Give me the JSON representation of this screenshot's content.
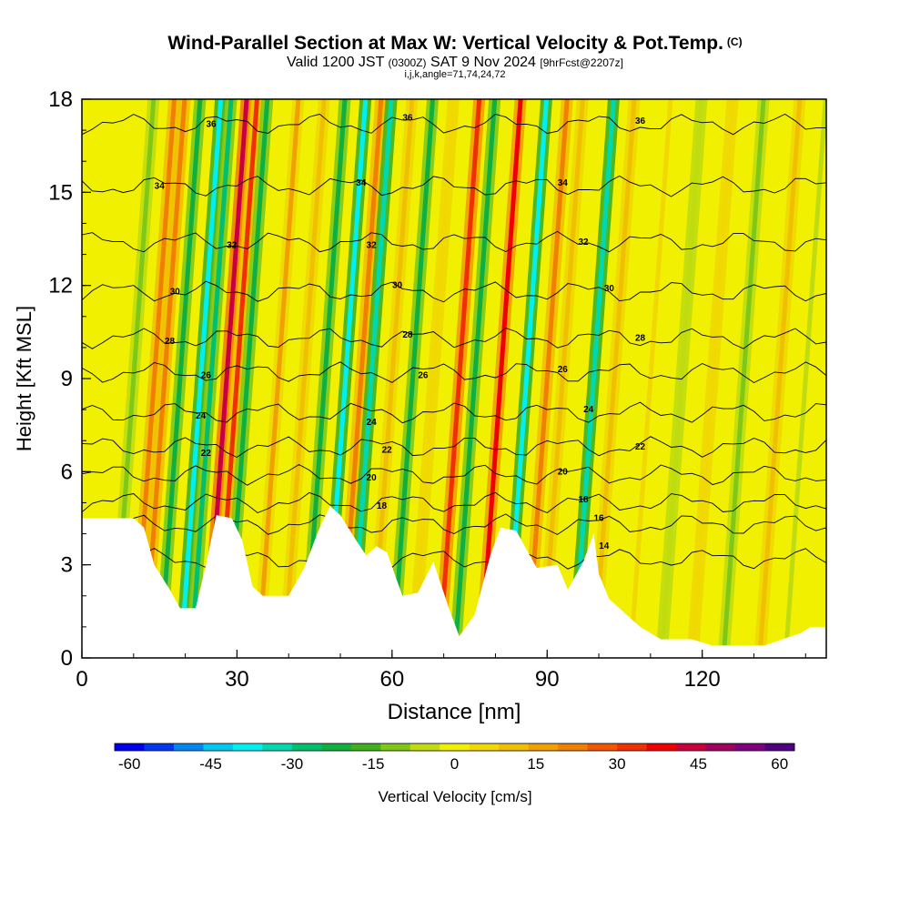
{
  "title": {
    "main": "Wind-Parallel Section at Max W: Vertical Velocity & Pot.Temp.",
    "copyright": "(C)",
    "valid_prefix": "Valid 1200 JST",
    "valid_utc": "(0300Z)",
    "valid_date": "SAT 9 Nov 2024",
    "forecast": "[9hrFcst@2207z]",
    "params": "i,j,k,angle=71,74,24,72"
  },
  "chart_data": {
    "type": "heatmap",
    "xlabel": "Distance [nm]",
    "ylabel": "Height [Kft MSL]",
    "xlim": [
      0,
      144
    ],
    "ylim": [
      0,
      18
    ],
    "x_ticks": [
      0,
      30,
      60,
      90,
      120
    ],
    "y_ticks": [
      0,
      3,
      6,
      9,
      12,
      15,
      18
    ],
    "colorbar": {
      "label": "Vertical Velocity [cm/s]",
      "ticks": [
        -60,
        -45,
        -30,
        -15,
        0,
        15,
        30,
        45,
        60
      ],
      "colors": [
        "#0000f0",
        "#0038f0",
        "#0088f0",
        "#00c8f0",
        "#00f0f0",
        "#00d8b0",
        "#00c070",
        "#10b040",
        "#40b020",
        "#80c818",
        "#c0dc10",
        "#f0f000",
        "#f0d800",
        "#f0c000",
        "#f0a000",
        "#f08000",
        "#f05800",
        "#f03000",
        "#f00000",
        "#c80040",
        "#a00060",
        "#800080",
        "#500080"
      ]
    },
    "velocity_bands": [
      {
        "x": 10,
        "w": -12
      },
      {
        "x": 14,
        "w": 20
      },
      {
        "x": 16,
        "w": 22
      },
      {
        "x": 19,
        "w": -20
      },
      {
        "x": 23,
        "w": -38
      },
      {
        "x": 25,
        "w": -30
      },
      {
        "x": 28,
        "w": 45
      },
      {
        "x": 30,
        "w": 30
      },
      {
        "x": 32,
        "w": -24
      },
      {
        "x": 38,
        "w": 15
      },
      {
        "x": 43,
        "w": 10
      },
      {
        "x": 47,
        "w": -20
      },
      {
        "x": 51,
        "w": -36
      },
      {
        "x": 54,
        "w": 22
      },
      {
        "x": 56,
        "w": -32
      },
      {
        "x": 60,
        "w": 12
      },
      {
        "x": 64,
        "w": -22
      },
      {
        "x": 68,
        "w": 8
      },
      {
        "x": 73,
        "w": 32
      },
      {
        "x": 76,
        "w": -22
      },
      {
        "x": 81,
        "w": 36
      },
      {
        "x": 86,
        "w": -38
      },
      {
        "x": 90,
        "w": 22
      },
      {
        "x": 93,
        "w": 10
      },
      {
        "x": 99,
        "w": -32
      },
      {
        "x": 103,
        "w": 12
      },
      {
        "x": 110,
        "w": 5
      },
      {
        "x": 116,
        "w": -8
      },
      {
        "x": 122,
        "w": 8
      },
      {
        "x": 128,
        "w": -10
      },
      {
        "x": 135,
        "w": 12
      },
      {
        "x": 140,
        "w": -6
      }
    ],
    "terrain": [
      [
        0,
        4.5
      ],
      [
        10,
        4.5
      ],
      [
        12,
        4.2
      ],
      [
        14,
        3.0
      ],
      [
        17,
        2.2
      ],
      [
        19,
        1.6
      ],
      [
        22,
        1.6
      ],
      [
        24,
        3.0
      ],
      [
        26,
        4.6
      ],
      [
        29,
        4.5
      ],
      [
        31,
        3.8
      ],
      [
        33,
        2.3
      ],
      [
        35,
        2.0
      ],
      [
        40,
        2.0
      ],
      [
        43,
        2.9
      ],
      [
        46,
        4.2
      ],
      [
        48,
        4.9
      ],
      [
        50,
        4.6
      ],
      [
        53,
        3.8
      ],
      [
        55,
        3.3
      ],
      [
        57,
        3.6
      ],
      [
        59,
        3.4
      ],
      [
        62,
        2.0
      ],
      [
        65,
        2.1
      ],
      [
        68,
        3.1
      ],
      [
        71,
        1.6
      ],
      [
        73,
        0.7
      ],
      [
        76,
        1.4
      ],
      [
        79,
        3.3
      ],
      [
        81,
        4.2
      ],
      [
        84,
        4.1
      ],
      [
        86,
        3.5
      ],
      [
        88,
        2.9
      ],
      [
        92,
        3.0
      ],
      [
        94,
        2.2
      ],
      [
        97,
        3.1
      ],
      [
        99,
        4.0
      ],
      [
        100,
        2.7
      ],
      [
        102,
        1.9
      ],
      [
        106,
        1.3
      ],
      [
        108,
        1.0
      ],
      [
        112,
        0.6
      ],
      [
        118,
        0.6
      ],
      [
        122,
        0.4
      ],
      [
        132,
        0.4
      ],
      [
        139,
        0.8
      ],
      [
        141,
        1.0
      ],
      [
        144,
        1.0
      ]
    ],
    "theta_contours": [
      {
        "value": 14,
        "h": 3.2,
        "label_x": 101,
        "label_y": 3.6
      },
      {
        "value": 16,
        "h": 4.3,
        "label_x": 100,
        "label_y": 4.5
      },
      {
        "value": 18,
        "h": 5.0,
        "label_x": 97,
        "label_y": 5.1
      },
      {
        "value": 20,
        "h": 5.9,
        "label_x": 93,
        "label_y": 6.0
      },
      {
        "value": 22,
        "h": 6.8,
        "label_x": 108,
        "label_y": 6.8
      },
      {
        "value": 24,
        "h": 7.9,
        "label_x": 98,
        "label_y": 8.0
      },
      {
        "value": 26,
        "h": 9.2,
        "label_x": 93,
        "label_y": 9.3
      },
      {
        "value": 28,
        "h": 10.3,
        "label_x": 108,
        "label_y": 10.3
      },
      {
        "value": 30,
        "h": 11.8,
        "label_x": 102,
        "label_y": 11.9
      },
      {
        "value": 32,
        "h": 13.4,
        "label_x": 97,
        "label_y": 13.4
      },
      {
        "value": 34,
        "h": 15.2,
        "label_x": 93,
        "label_y": 15.3
      },
      {
        "value": 36,
        "h": 17.2,
        "label_x": 108,
        "label_y": 17.3
      }
    ],
    "contour_labels": [
      {
        "text": "36",
        "x": 25,
        "y": 17.2
      },
      {
        "text": "36",
        "x": 63,
        "y": 17.4
      },
      {
        "text": "36",
        "x": 108,
        "y": 17.3
      },
      {
        "text": "34",
        "x": 15,
        "y": 15.2
      },
      {
        "text": "34",
        "x": 54,
        "y": 15.3
      },
      {
        "text": "34",
        "x": 93,
        "y": 15.3
      },
      {
        "text": "32",
        "x": 29,
        "y": 13.3
      },
      {
        "text": "32",
        "x": 56,
        "y": 13.3
      },
      {
        "text": "32",
        "x": 97,
        "y": 13.4
      },
      {
        "text": "30",
        "x": 18,
        "y": 11.8
      },
      {
        "text": "30",
        "x": 61,
        "y": 12.0
      },
      {
        "text": "30",
        "x": 102,
        "y": 11.9
      },
      {
        "text": "28",
        "x": 17,
        "y": 10.2
      },
      {
        "text": "28",
        "x": 63,
        "y": 10.4
      },
      {
        "text": "28",
        "x": 108,
        "y": 10.3
      },
      {
        "text": "26",
        "x": 24,
        "y": 9.1
      },
      {
        "text": "26",
        "x": 66,
        "y": 9.1
      },
      {
        "text": "26",
        "x": 93,
        "y": 9.3
      },
      {
        "text": "24",
        "x": 23,
        "y": 7.8
      },
      {
        "text": "24",
        "x": 56,
        "y": 7.6
      },
      {
        "text": "24",
        "x": 98,
        "y": 8.0
      },
      {
        "text": "22",
        "x": 24,
        "y": 6.6
      },
      {
        "text": "22",
        "x": 59,
        "y": 6.7
      },
      {
        "text": "22",
        "x": 108,
        "y": 6.8
      },
      {
        "text": "20",
        "x": 56,
        "y": 5.8
      },
      {
        "text": "20",
        "x": 93,
        "y": 6.0
      },
      {
        "text": "18",
        "x": 58,
        "y": 4.9
      },
      {
        "text": "18",
        "x": 97,
        "y": 5.1
      },
      {
        "text": "16",
        "x": 100,
        "y": 4.5
      },
      {
        "text": "14",
        "x": 101,
        "y": 3.6
      }
    ]
  }
}
